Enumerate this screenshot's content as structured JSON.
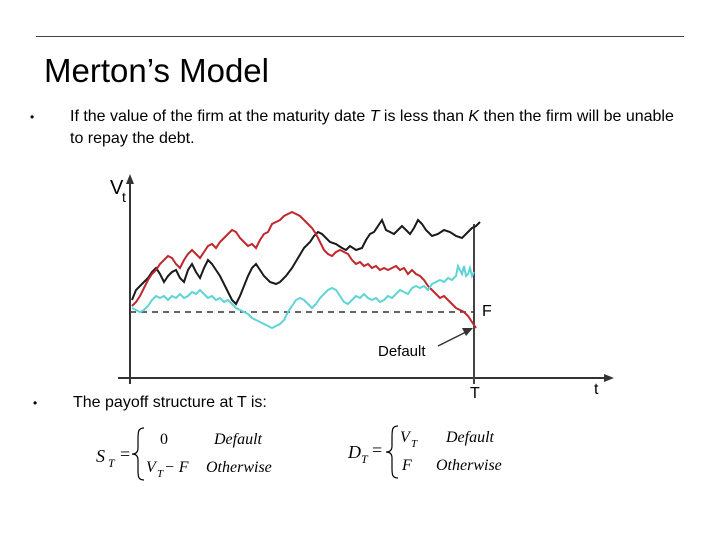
{
  "slide": {
    "title": "Merton’s Model",
    "bullets": [
      {
        "marker": "•",
        "parts": [
          {
            "text": "If the value of the firm at the maturity date ",
            "italic": false
          },
          {
            "text": "T",
            "italic": true
          },
          {
            "text": " is less than ",
            "italic": false
          },
          {
            "text": "K",
            "italic": true
          },
          {
            "text": " then the firm will be unable to repay the debt.",
            "italic": false
          }
        ]
      },
      {
        "marker": "•",
        "parts": [
          {
            "text": "The payoff structure at T is:",
            "italic": false
          }
        ]
      }
    ]
  },
  "diagram": {
    "y_axis_label": "V",
    "y_axis_subscript": "t",
    "x_axis_label": "t",
    "maturity_label": "T",
    "threshold_label": "F",
    "default_annotation": "Default",
    "series_colors": {
      "black": "#1a1a1a",
      "red": "#c0272d",
      "cyan": "#5fd4d4"
    }
  },
  "formulas": {
    "equity": {
      "lhs": "S",
      "lhs_sub": "T",
      "eq": "=",
      "case1_value": "0",
      "case1_label": "Default",
      "case2_value_v": "V",
      "case2_value_sub": "T",
      "case2_value_rest": " − F",
      "case2_label": "Otherwise"
    },
    "debt": {
      "lhs": "D",
      "lhs_sub": "T",
      "eq": "=",
      "case1_value_v": "V",
      "case1_value_sub": "T",
      "case1_label": "Default",
      "case2_value": "F",
      "case2_label": "Otherwise"
    }
  }
}
